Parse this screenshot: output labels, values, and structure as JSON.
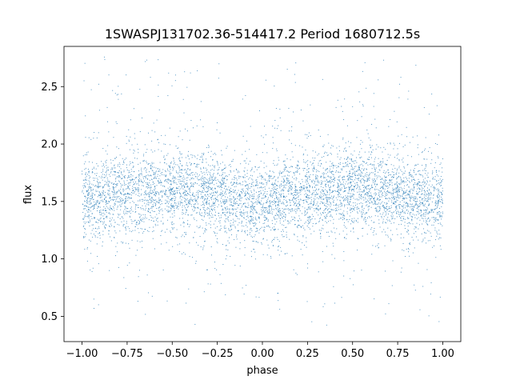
{
  "chart_data": {
    "type": "scatter",
    "title": "1SWASPJ131702.36-514417.2 Period 1680712.5s",
    "xlabel": "phase",
    "ylabel": "flux",
    "xlim": [
      -1.1,
      1.1
    ],
    "ylim": [
      0.28,
      2.85
    ],
    "xticks": [
      -1.0,
      -0.75,
      -0.5,
      -0.25,
      0.0,
      0.25,
      0.5,
      0.75,
      1.0
    ],
    "xtick_labels": [
      "−1.00",
      "−0.75",
      "−0.50",
      "−0.25",
      "0.00",
      "0.25",
      "0.50",
      "0.75",
      "1.00"
    ],
    "yticks": [
      0.5,
      1.0,
      1.5,
      2.0,
      2.5
    ],
    "ytick_labels": [
      "0.5",
      "1.0",
      "1.5",
      "2.0",
      "2.5"
    ],
    "grid": false,
    "series": [
      {
        "color": "#1f77b4",
        "marker_size": 1,
        "x_range": [
          -1.0,
          1.0
        ],
        "center_flux": 1.55,
        "flux_profile": [
          {
            "phase": -1.0,
            "flux": 1.5
          },
          {
            "phase": -0.75,
            "flux": 1.58
          },
          {
            "phase": -0.5,
            "flux": 1.6
          },
          {
            "phase": -0.25,
            "flux": 1.55
          },
          {
            "phase": -0.05,
            "flux": 1.48
          },
          {
            "phase": 0.0,
            "flux": 1.5
          },
          {
            "phase": 0.25,
            "flux": 1.57
          },
          {
            "phase": 0.5,
            "flux": 1.62
          },
          {
            "phase": 0.75,
            "flux": 1.56
          },
          {
            "phase": 1.0,
            "flux": 1.5
          }
        ],
        "scatter_sigma": 0.17,
        "outlier_range": [
          0.42,
          2.78
        ]
      }
    ]
  }
}
